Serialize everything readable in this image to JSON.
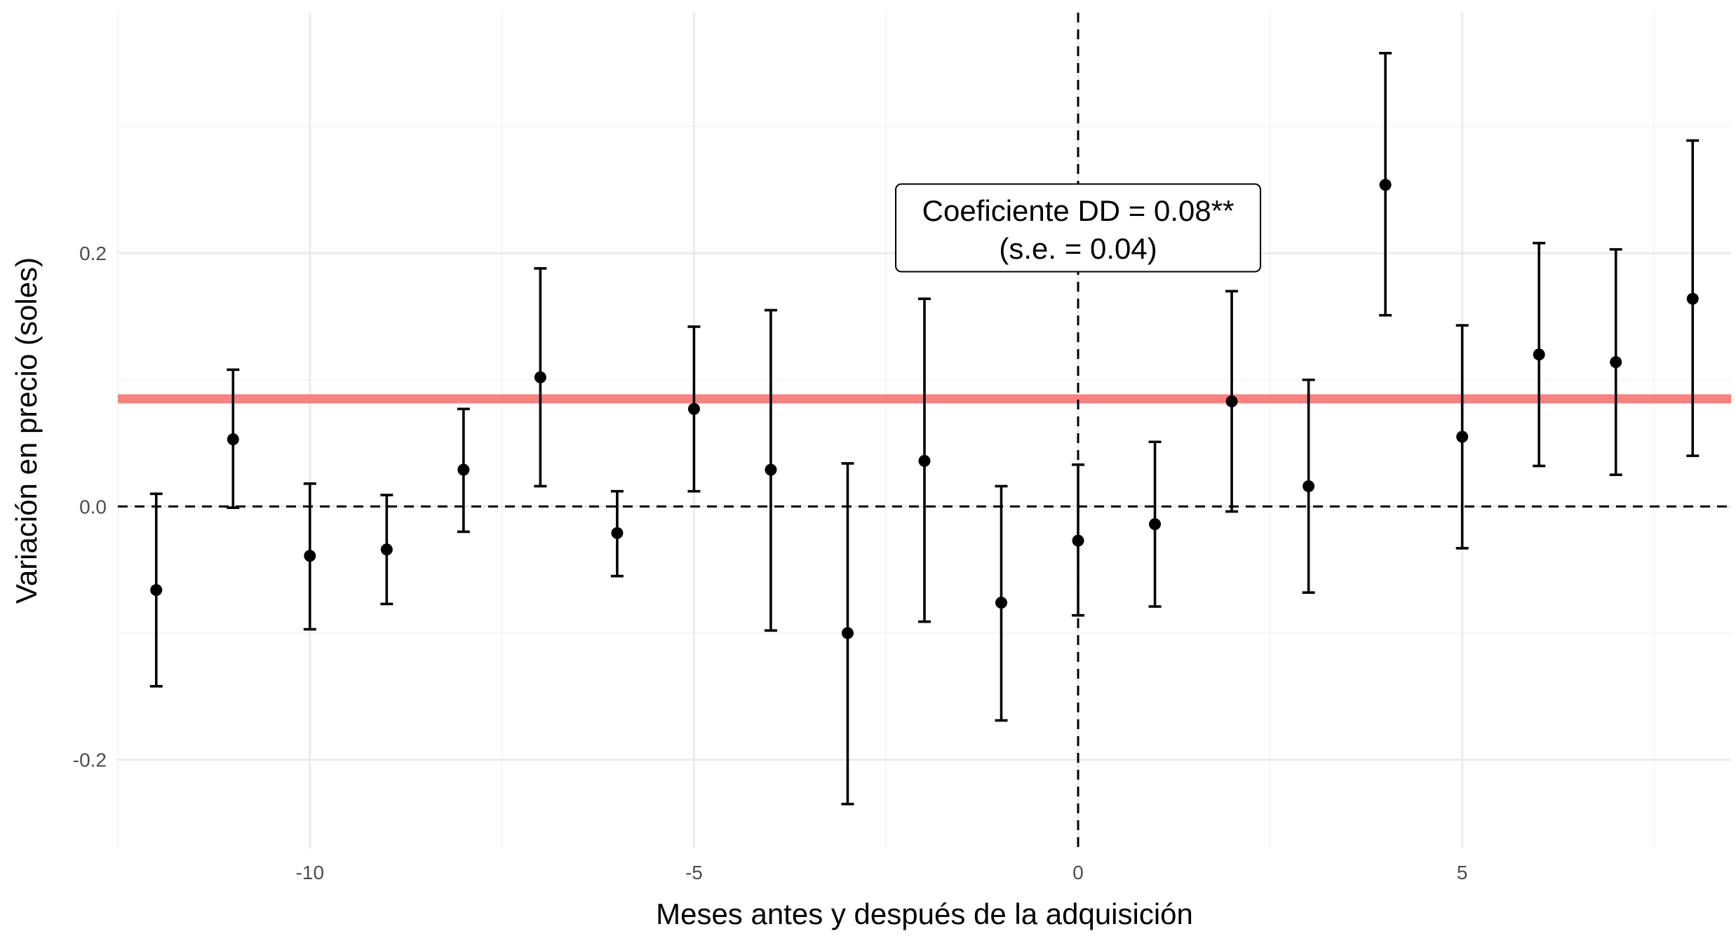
{
  "chart_data": {
    "type": "scatter",
    "xlabel": "Meses antes y después de la adquisición",
    "ylabel": "Variación en precio (soles)",
    "xlim": [
      -12.5,
      8.5
    ],
    "ylim": [
      -0.27,
      0.39
    ],
    "x_ticks": [
      -10,
      -5,
      0,
      5
    ],
    "x_tick_labels": [
      "-10",
      "-5",
      "0",
      "5"
    ],
    "y_ticks": [
      -0.2,
      0.0,
      0.2
    ],
    "y_tick_labels": [
      "-0.2",
      "0.0",
      "0.2"
    ],
    "grid": true,
    "legend": "none",
    "series": [
      {
        "points": [
          {
            "x": -12,
            "y": -0.066,
            "lower": -0.142,
            "upper": 0.01
          },
          {
            "x": -11,
            "y": 0.053,
            "lower": -0.001,
            "upper": 0.108
          },
          {
            "x": -10,
            "y": -0.039,
            "lower": -0.097,
            "upper": 0.018
          },
          {
            "x": -9,
            "y": -0.034,
            "lower": -0.077,
            "upper": 0.009
          },
          {
            "x": -8,
            "y": 0.029,
            "lower": -0.02,
            "upper": 0.077
          },
          {
            "x": -7,
            "y": 0.102,
            "lower": 0.016,
            "upper": 0.188
          },
          {
            "x": -6,
            "y": -0.021,
            "lower": -0.055,
            "upper": 0.012
          },
          {
            "x": -5,
            "y": 0.077,
            "lower": 0.012,
            "upper": 0.142
          },
          {
            "x": -4,
            "y": 0.029,
            "lower": -0.098,
            "upper": 0.155
          },
          {
            "x": -3,
            "y": -0.1,
            "lower": -0.235,
            "upper": 0.034
          },
          {
            "x": -2,
            "y": 0.036,
            "lower": -0.091,
            "upper": 0.164
          },
          {
            "x": -1,
            "y": -0.076,
            "lower": -0.169,
            "upper": 0.016
          },
          {
            "x": 0,
            "y": -0.027,
            "lower": -0.086,
            "upper": 0.033
          },
          {
            "x": 1,
            "y": -0.014,
            "lower": -0.079,
            "upper": 0.051
          },
          {
            "x": 2,
            "y": 0.083,
            "lower": -0.004,
            "upper": 0.17
          },
          {
            "x": 3,
            "y": 0.016,
            "lower": -0.068,
            "upper": 0.1
          },
          {
            "x": 4,
            "y": 0.254,
            "lower": 0.151,
            "upper": 0.358
          },
          {
            "x": 5,
            "y": 0.055,
            "lower": -0.033,
            "upper": 0.143
          },
          {
            "x": 6,
            "y": 0.12,
            "lower": 0.032,
            "upper": 0.208
          },
          {
            "x": 7,
            "y": 0.114,
            "lower": 0.025,
            "upper": 0.203
          },
          {
            "x": 8,
            "y": 0.164,
            "lower": 0.04,
            "upper": 0.289
          }
        ]
      }
    ],
    "reference_lines": {
      "coefficient_level": 0.085,
      "zero_y": 0,
      "zero_x": 0
    },
    "annotation": {
      "line1": "Coeficiente DD = 0.08**",
      "line2": "(s.e. = 0.04)",
      "x": 0,
      "y": 0.22
    },
    "colors": {
      "coefficient_line": "#f8827f",
      "points": "#000000",
      "grid_major": "#ebebeb",
      "grid_minor": "#f3f3f3"
    }
  }
}
